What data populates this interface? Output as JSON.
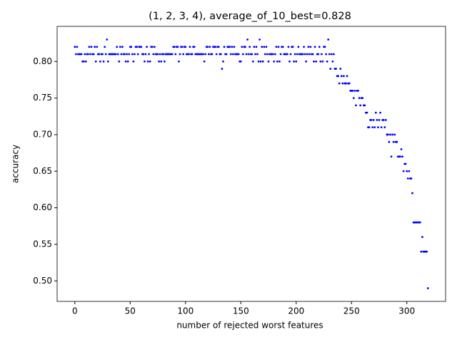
{
  "chart_data": {
    "type": "scatter",
    "title": "(1, 2, 3, 4), average_of_10_best=0.828",
    "x_label": "number of rejected worst features",
    "y_label": "accuracy",
    "color": "#0000ff",
    "xlim": [
      -16,
      335
    ],
    "ylim": [
      0.472,
      0.848
    ],
    "xticks": [
      0,
      50,
      100,
      150,
      200,
      250,
      300
    ],
    "yticks": [
      {
        "value": 0.5,
        "label": "0.50"
      },
      {
        "value": 0.55,
        "label": "0.55"
      },
      {
        "value": 0.6,
        "label": "0.60"
      },
      {
        "value": 0.65,
        "label": "0.65"
      },
      {
        "value": 0.7,
        "label": "0.70"
      },
      {
        "value": 0.75,
        "label": "0.75"
      },
      {
        "value": 0.8,
        "label": "0.80"
      }
    ],
    "x": [
      0,
      1,
      2,
      3,
      4,
      5,
      6,
      7,
      8,
      9,
      10,
      11,
      12,
      13,
      14,
      15,
      16,
      17,
      18,
      19,
      20,
      21,
      22,
      23,
      24,
      25,
      26,
      27,
      28,
      29,
      30,
      31,
      32,
      33,
      34,
      35,
      36,
      37,
      38,
      39,
      40,
      41,
      42,
      43,
      44,
      45,
      46,
      47,
      48,
      49,
      50,
      51,
      52,
      53,
      54,
      55,
      56,
      57,
      58,
      59,
      60,
      61,
      62,
      63,
      64,
      65,
      66,
      67,
      68,
      69,
      70,
      71,
      72,
      73,
      74,
      75,
      76,
      77,
      78,
      79,
      80,
      81,
      82,
      83,
      84,
      85,
      86,
      87,
      88,
      89,
      90,
      91,
      92,
      93,
      94,
      95,
      96,
      97,
      98,
      99,
      100,
      101,
      102,
      103,
      104,
      105,
      106,
      107,
      108,
      109,
      110,
      111,
      112,
      113,
      114,
      115,
      116,
      117,
      118,
      119,
      120,
      121,
      122,
      123,
      124,
      125,
      126,
      127,
      128,
      129,
      130,
      131,
      132,
      133,
      134,
      135,
      136,
      137,
      138,
      139,
      140,
      141,
      142,
      143,
      144,
      145,
      146,
      147,
      148,
      149,
      150,
      151,
      152,
      153,
      154,
      155,
      156,
      157,
      158,
      159,
      160,
      161,
      162,
      163,
      164,
      165,
      166,
      167,
      168,
      169,
      170,
      171,
      172,
      173,
      174,
      175,
      176,
      177,
      178,
      179,
      180,
      181,
      182,
      183,
      184,
      185,
      186,
      187,
      188,
      189,
      190,
      191,
      192,
      193,
      194,
      195,
      196,
      197,
      198,
      199,
      200,
      201,
      202,
      203,
      204,
      205,
      206,
      207,
      208,
      209,
      210,
      211,
      212,
      213,
      214,
      215,
      216,
      217,
      218,
      219,
      220,
      221,
      222,
      223,
      224,
      225,
      226,
      227,
      228,
      229,
      230,
      231,
      232,
      233,
      234,
      235,
      236,
      237,
      238,
      239,
      240,
      241,
      242,
      243,
      244,
      245,
      246,
      247,
      248,
      249,
      250,
      251,
      252,
      253,
      254,
      255,
      256,
      257,
      258,
      259,
      260,
      261,
      262,
      263,
      264,
      265,
      266,
      267,
      268,
      269,
      270,
      271,
      272,
      273,
      274,
      275,
      276,
      277,
      278,
      279,
      280,
      281,
      282,
      283,
      284,
      285,
      286,
      287,
      288,
      289,
      290,
      291,
      292,
      293,
      294,
      295,
      296,
      297,
      298,
      299,
      300,
      301,
      302,
      303,
      304,
      305,
      306,
      307,
      308,
      309,
      310,
      311,
      312,
      313,
      314,
      315,
      316,
      317,
      318,
      319
    ],
    "values": [
      0.82,
      0.81,
      0.82,
      0.81,
      0.81,
      0.81,
      0.81,
      0.8,
      0.8,
      0.81,
      0.8,
      0.81,
      0.81,
      0.82,
      0.81,
      0.82,
      0.81,
      0.81,
      0.82,
      0.8,
      0.82,
      0.81,
      0.81,
      0.8,
      0.81,
      0.81,
      0.8,
      0.82,
      0.81,
      0.83,
      0.8,
      0.81,
      0.81,
      0.81,
      0.81,
      0.81,
      0.81,
      0.81,
      0.82,
      0.81,
      0.8,
      0.82,
      0.81,
      0.82,
      0.81,
      0.81,
      0.8,
      0.81,
      0.8,
      0.81,
      0.82,
      0.82,
      0.81,
      0.8,
      0.81,
      0.82,
      0.82,
      0.81,
      0.82,
      0.82,
      0.82,
      0.81,
      0.81,
      0.8,
      0.81,
      0.82,
      0.8,
      0.81,
      0.8,
      0.82,
      0.82,
      0.81,
      0.82,
      0.81,
      0.81,
      0.81,
      0.8,
      0.81,
      0.8,
      0.81,
      0.81,
      0.8,
      0.81,
      0.81,
      0.81,
      0.81,
      0.81,
      0.81,
      0.81,
      0.82,
      0.82,
      0.81,
      0.82,
      0.82,
      0.8,
      0.81,
      0.82,
      0.82,
      0.81,
      0.82,
      0.82,
      0.81,
      0.81,
      0.81,
      0.82,
      0.81,
      0.81,
      0.82,
      0.82,
      0.81,
      0.81,
      0.81,
      0.81,
      0.81,
      0.81,
      0.81,
      0.81,
      0.8,
      0.81,
      0.82,
      0.82,
      0.81,
      0.82,
      0.81,
      0.81,
      0.82,
      0.82,
      0.82,
      0.81,
      0.82,
      0.82,
      0.81,
      0.81,
      0.79,
      0.8,
      0.82,
      0.81,
      0.81,
      0.82,
      0.82,
      0.82,
      0.81,
      0.82,
      0.81,
      0.82,
      0.81,
      0.81,
      0.81,
      0.81,
      0.8,
      0.8,
      0.82,
      0.81,
      0.82,
      0.82,
      0.81,
      0.83,
      0.81,
      0.82,
      0.81,
      0.81,
      0.8,
      0.82,
      0.81,
      0.82,
      0.81,
      0.8,
      0.83,
      0.8,
      0.82,
      0.8,
      0.82,
      0.81,
      0.82,
      0.81,
      0.8,
      0.81,
      0.81,
      0.81,
      0.81,
      0.8,
      0.81,
      0.82,
      0.8,
      0.82,
      0.8,
      0.81,
      0.82,
      0.82,
      0.81,
      0.81,
      0.81,
      0.81,
      0.82,
      0.8,
      0.81,
      0.82,
      0.82,
      0.8,
      0.81,
      0.8,
      0.81,
      0.82,
      0.81,
      0.81,
      0.81,
      0.81,
      0.82,
      0.81,
      0.8,
      0.81,
      0.82,
      0.81,
      0.82,
      0.81,
      0.81,
      0.8,
      0.82,
      0.8,
      0.81,
      0.81,
      0.82,
      0.8,
      0.81,
      0.8,
      0.82,
      0.82,
      0.81,
      0.8,
      0.83,
      0.81,
      0.79,
      0.81,
      0.8,
      0.81,
      0.79,
      0.79,
      0.78,
      0.78,
      0.77,
      0.79,
      0.78,
      0.77,
      0.78,
      0.77,
      0.77,
      0.78,
      0.77,
      0.77,
      0.76,
      0.76,
      0.76,
      0.75,
      0.76,
      0.74,
      0.76,
      0.76,
      0.75,
      0.74,
      0.75,
      0.75,
      0.74,
      0.74,
      0.73,
      0.73,
      0.71,
      0.71,
      0.72,
      0.72,
      0.71,
      0.72,
      0.71,
      0.73,
      0.72,
      0.71,
      0.72,
      0.73,
      0.71,
      0.72,
      0.72,
      0.71,
      0.72,
      0.7,
      0.7,
      0.69,
      0.7,
      0.67,
      0.7,
      0.69,
      0.7,
      0.69,
      0.69,
      0.67,
      0.67,
      0.67,
      0.68,
      0.67,
      0.65,
      0.66,
      0.66,
      0.65,
      0.64,
      0.65,
      0.64,
      0.64,
      0.62,
      0.58,
      0.58,
      0.58,
      0.58,
      0.58,
      0.58,
      0.58,
      0.54,
      0.56,
      0.54,
      0.54,
      0.54,
      0.54,
      0.49
    ]
  }
}
